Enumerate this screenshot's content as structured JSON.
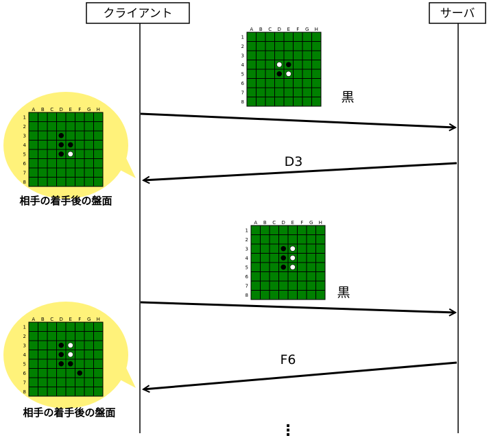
{
  "participants": {
    "client": "クライアント",
    "server": "サーバ"
  },
  "board_labels": {
    "columns": [
      "A",
      "B",
      "C",
      "D",
      "E",
      "F",
      "G",
      "H"
    ],
    "rows": [
      "1",
      "2",
      "3",
      "4",
      "5",
      "6",
      "7",
      "8"
    ]
  },
  "colors": {
    "board": "#008000",
    "bubble": "#fff27a"
  },
  "boards": [
    {
      "id": "server-board-1",
      "stones": [
        {
          "cell": "D4",
          "color": "white"
        },
        {
          "cell": "E4",
          "color": "black"
        },
        {
          "cell": "D5",
          "color": "black"
        },
        {
          "cell": "E5",
          "color": "white"
        }
      ]
    },
    {
      "id": "client-board-1",
      "stones": [
        {
          "cell": "D3",
          "color": "black"
        },
        {
          "cell": "D4",
          "color": "black"
        },
        {
          "cell": "E4",
          "color": "black"
        },
        {
          "cell": "D5",
          "color": "black"
        },
        {
          "cell": "E5",
          "color": "white"
        }
      ]
    },
    {
      "id": "server-board-2",
      "stones": [
        {
          "cell": "D3",
          "color": "black"
        },
        {
          "cell": "E3",
          "color": "white"
        },
        {
          "cell": "D4",
          "color": "black"
        },
        {
          "cell": "E4",
          "color": "white"
        },
        {
          "cell": "D5",
          "color": "black"
        },
        {
          "cell": "E5",
          "color": "white"
        }
      ]
    },
    {
      "id": "client-board-2",
      "stones": [
        {
          "cell": "D3",
          "color": "black"
        },
        {
          "cell": "E3",
          "color": "white"
        },
        {
          "cell": "D4",
          "color": "black"
        },
        {
          "cell": "E4",
          "color": "white"
        },
        {
          "cell": "D5",
          "color": "black"
        },
        {
          "cell": "E5",
          "color": "black"
        },
        {
          "cell": "F6",
          "color": "black"
        }
      ]
    }
  ],
  "messages": [
    {
      "text": "黒",
      "direction": "to-server"
    },
    {
      "text": "D3",
      "direction": "to-client"
    },
    {
      "text": "黒",
      "direction": "to-server"
    },
    {
      "text": "F6",
      "direction": "to-client"
    }
  ],
  "bubble_captions": [
    "相手の着手後の盤面",
    "相手の着手後の盤面"
  ],
  "continuation": "⋮"
}
